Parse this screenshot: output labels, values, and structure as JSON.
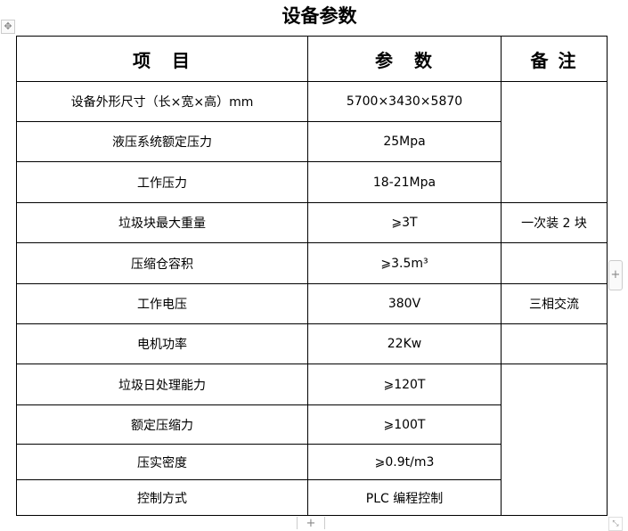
{
  "title": "设备参数",
  "table": {
    "headers": [
      "项　目",
      "参　数",
      "备 注"
    ],
    "rows": [
      {
        "item": "设备外形尺寸（长×宽×高）mm",
        "value": "5700×3430×5870"
      },
      {
        "item": "液压系统额定压力",
        "value": "25Mpa"
      },
      {
        "item": "工作压力",
        "value": "18-21Mpa"
      },
      {
        "item": "垃圾块最大重量",
        "value": "⩾3T"
      },
      {
        "item": "压缩仓容积",
        "value": "⩾3.5m³"
      },
      {
        "item": "工作电压",
        "value": "380V"
      },
      {
        "item": "电机功率",
        "value": "22Kw"
      },
      {
        "item": "垃圾日处理能力",
        "value": "⩾120T"
      },
      {
        "item": "额定压缩力",
        "value": "⩾100T"
      },
      {
        "item": "压实密度",
        "value": "⩾0.9t/m3"
      },
      {
        "item": "控制方式",
        "value": "PLC 编程控制"
      }
    ],
    "remarks": {
      "r4": "一次装 2 块",
      "r6": "三相交流"
    }
  },
  "controls": {
    "move": "✥",
    "add": "+",
    "resize": "⤡"
  }
}
